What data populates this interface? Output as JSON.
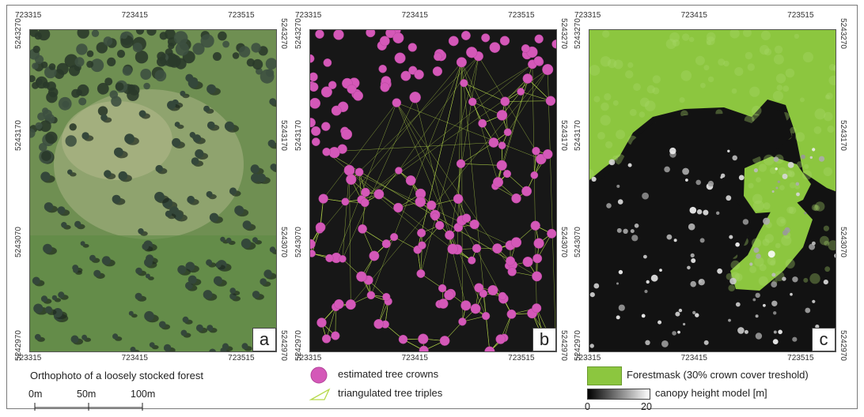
{
  "coords": {
    "x_ticks": [
      "723315",
      "723415",
      "723515"
    ],
    "y_ticks": [
      "5243270",
      "5243170",
      "5243070",
      "5242970"
    ]
  },
  "panels": [
    {
      "letter": "a",
      "caption": "Orthophoto of a loosely stocked forest"
    },
    {
      "letter": "b"
    },
    {
      "letter": "c"
    }
  ],
  "scale_bar": {
    "labels": [
      "0m",
      "50m",
      "100m"
    ]
  },
  "legend_b": {
    "crowns": "estimated tree crowns",
    "triples": "triangulated tree triples",
    "crown_color": "#d458b8",
    "line_color": "#b6d94a"
  },
  "legend_c": {
    "forestmask": "Forestmask (30% crown cover treshold)",
    "chm": "canopy height model [m]",
    "chm_min": "0",
    "chm_max": "20",
    "forest_color": "#8cc63f"
  }
}
